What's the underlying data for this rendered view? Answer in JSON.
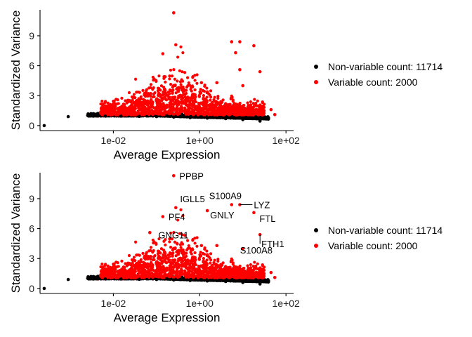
{
  "colors": {
    "variable": "#ff0000",
    "nonvariable": "#000000"
  },
  "chart_data": [
    {
      "type": "scatter",
      "xlabel": "Average Expression",
      "ylabel": "Standardized Variance",
      "x_scale": "log10",
      "xlim": [
        0.0002,
        150
      ],
      "ylim": [
        -0.5,
        11.6
      ],
      "x_ticks": [
        {
          "value": 0.01,
          "label": "1e-02"
        },
        {
          "value": 1,
          "label": "1e+00"
        },
        {
          "value": 100,
          "label": "1e+02"
        }
      ],
      "y_ticks": [
        {
          "value": 0,
          "label": "0"
        },
        {
          "value": 3,
          "label": "3"
        },
        {
          "value": 6,
          "label": "6"
        },
        {
          "value": 9,
          "label": "9"
        }
      ],
      "legend": [
        {
          "label": "Non-variable count: 11714",
          "color": "#000000"
        },
        {
          "label": "Variable count: 2000",
          "color": "#ff0000"
        }
      ],
      "legend_position": "right",
      "series": [
        {
          "name": "Non-variable count: 11714",
          "points": [
            [
              0.00025,
              0.0
            ],
            [
              0.0009,
              0.9
            ],
            [
              0.0035,
              0.95
            ],
            [
              0.0065,
              0.95
            ],
            [
              0.015,
              0.95
            ],
            [
              0.04,
              0.92
            ],
            [
              0.1,
              0.9
            ],
            [
              0.25,
              0.85
            ],
            [
              0.6,
              0.8
            ],
            [
              1.5,
              0.75
            ],
            [
              4,
              0.7
            ],
            [
              10,
              0.6
            ],
            [
              25,
              0.45
            ]
          ]
        },
        {
          "name": "Variable count: 2000",
          "points": [
            [
              0.25,
              11.3
            ],
            [
              0.28,
              8.1
            ],
            [
              0.14,
              7.2
            ],
            [
              5.5,
              8.4
            ],
            [
              8.5,
              8.4
            ],
            [
              6.8,
              7.3
            ],
            [
              18,
              8.0
            ],
            [
              8.5,
              5.6
            ],
            [
              25,
              5.4
            ],
            [
              10,
              4.0
            ],
            [
              2.5,
              4.3
            ],
            [
              1.1,
              4.3
            ],
            [
              0.15,
              4.9
            ],
            [
              0.018,
              2.1
            ],
            [
              0.05,
              2.6
            ],
            [
              0.02,
              1.7
            ],
            [
              45,
              1.6
            ],
            [
              55,
              1.1
            ],
            [
              30,
              1.1
            ]
          ]
        }
      ]
    },
    {
      "type": "scatter",
      "xlabel": "Average Expression",
      "ylabel": "Standardized Variance",
      "x_scale": "log10",
      "xlim": [
        0.0002,
        150
      ],
      "ylim": [
        -0.5,
        11.6
      ],
      "x_ticks": [
        {
          "value": 0.01,
          "label": "1e-02"
        },
        {
          "value": 1,
          "label": "1e+00"
        },
        {
          "value": 100,
          "label": "1e+02"
        }
      ],
      "y_ticks": [
        {
          "value": 0,
          "label": "0"
        },
        {
          "value": 3,
          "label": "3"
        },
        {
          "value": 6,
          "label": "6"
        },
        {
          "value": 9,
          "label": "9"
        }
      ],
      "legend": [
        {
          "label": "Non-variable count: 11714",
          "color": "#000000"
        },
        {
          "label": "Variable count: 2000",
          "color": "#ff0000"
        }
      ],
      "legend_position": "right",
      "annotations": [
        {
          "text": "PPBP",
          "x": 0.25,
          "y": 11.3
        },
        {
          "text": "IGLL5",
          "x": 0.28,
          "y": 8.1
        },
        {
          "text": "S100A9",
          "x": 5.5,
          "y": 8.4
        },
        {
          "text": "LYZ",
          "x": 8.5,
          "y": 8.4
        },
        {
          "text": "GNLY",
          "x": 1.5,
          "y": 7.8
        },
        {
          "text": "PF4",
          "x": 0.14,
          "y": 7.2
        },
        {
          "text": "FTL",
          "x": 18,
          "y": 7.6
        },
        {
          "text": "GNG11",
          "x": 0.07,
          "y": 5.6
        },
        {
          "text": "FTH1",
          "x": 25,
          "y": 5.4
        },
        {
          "text": "S100A8",
          "x": 10,
          "y": 4.0
        }
      ],
      "series": [
        {
          "name": "Non-variable count: 11714",
          "points": [
            [
              0.00025,
              0.0
            ],
            [
              0.0009,
              0.9
            ],
            [
              0.0035,
              0.95
            ],
            [
              0.0065,
              0.95
            ],
            [
              0.015,
              0.95
            ],
            [
              0.04,
              0.92
            ],
            [
              0.1,
              0.9
            ],
            [
              0.25,
              0.85
            ],
            [
              0.6,
              0.8
            ],
            [
              1.5,
              0.75
            ],
            [
              4,
              0.7
            ],
            [
              10,
              0.6
            ],
            [
              25,
              0.45
            ]
          ]
        },
        {
          "name": "Variable count: 2000",
          "points": [
            [
              0.25,
              11.3
            ],
            [
              0.28,
              8.1
            ],
            [
              1.5,
              7.8
            ],
            [
              0.14,
              7.2
            ],
            [
              5.5,
              8.4
            ],
            [
              8.5,
              8.4
            ],
            [
              18,
              7.6
            ],
            [
              0.07,
              5.6
            ],
            [
              25,
              5.4
            ],
            [
              10,
              4.0
            ],
            [
              2.5,
              4.3
            ],
            [
              1.1,
              4.3
            ],
            [
              0.3,
              4.5
            ],
            [
              0.018,
              2.1
            ],
            [
              0.05,
              2.6
            ],
            [
              0.02,
              1.7
            ],
            [
              45,
              1.6
            ],
            [
              55,
              1.1
            ],
            [
              30,
              1.1
            ]
          ]
        }
      ]
    }
  ]
}
